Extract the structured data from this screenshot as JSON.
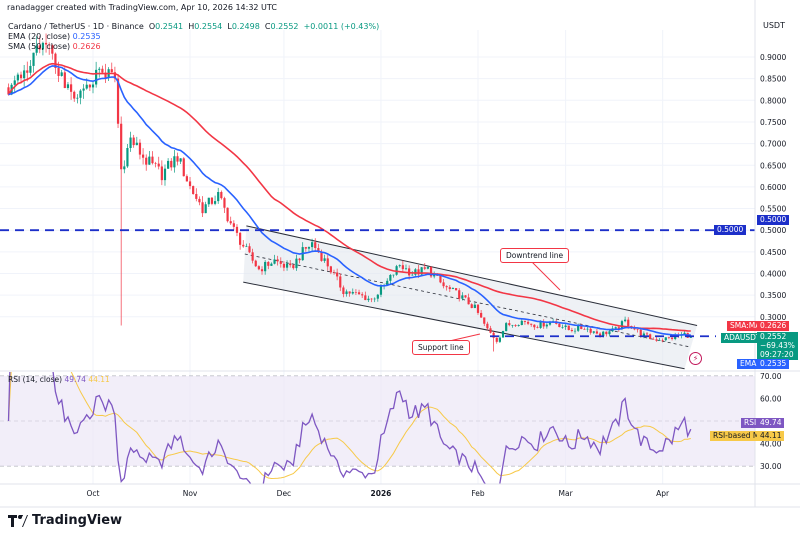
{
  "header": {
    "credit": "ranadagger created with TradingView.com, Apr 10, 2026 14:32 UTC",
    "symbol": "Cardano / TetherUS · 1D · Binance",
    "ohlc": {
      "o_label": "O",
      "o": "0.2541",
      "h_label": "H",
      "h": "0.2554",
      "l_label": "L",
      "l": "0.2498",
      "c_label": "C",
      "c": "0.2552",
      "change": "+0.0011 (+0.43%)"
    },
    "ema_label": "EMA (20, close)",
    "ema_value": "0.2535",
    "sma_label": "SMA (50, close)",
    "sma_value": "0.2626",
    "currency": "USDT"
  },
  "rsi_legend": {
    "label": "RSI (14, close)",
    "rsi": "49.74",
    "ma": "44.11"
  },
  "price_tags": {
    "sma_tag": "SMA:MA",
    "sma": "0.2626",
    "symbol_tag": "ADAUSDT",
    "last": "0.2552",
    "change_pct": "−69.43%",
    "countdown": "09:27:20",
    "ema_tag": "EMA",
    "ema": "0.2535",
    "level": "0.5000",
    "rsi_tag": "RSI",
    "rsi": "49.74",
    "rsi_ma_tag": "RSI-based MA",
    "rsi_ma": "44.11"
  },
  "annotations": {
    "downtrend": "Downtrend line",
    "support": "Support line"
  },
  "logo": "TradingView",
  "colors": {
    "up": "#089981",
    "down": "#f23645",
    "ema": "#2962ff",
    "sma": "#f23645",
    "rsi": "#7e57c2",
    "rsi_ma": "#f7c948",
    "level": "#1c2fc9"
  },
  "chart_data": {
    "type": "candlestick",
    "price_axis": {
      "ticks": [
        "0.9000",
        "0.8500",
        "0.8000",
        "0.7500",
        "0.7000",
        "0.6500",
        "0.6000",
        "0.5500",
        "0.5000",
        "0.4500",
        "0.4000",
        "0.3500",
        "0.3000"
      ],
      "range": [
        0.2,
        0.93
      ]
    },
    "time_axis": {
      "ticks": [
        "Oct",
        "Nov",
        "Dec",
        "2026",
        "Feb",
        "Mar",
        "Apr"
      ]
    },
    "rsi_axis": {
      "ticks": [
        "70.00",
        "60.00",
        "40.00",
        "30.00"
      ],
      "range": [
        20,
        80
      ]
    },
    "close_keypoints": [
      [
        "2025-09-04",
        0.83
      ],
      [
        "2025-09-11",
        0.89
      ],
      [
        "2025-09-16",
        0.93
      ],
      [
        "2025-09-20",
        0.87
      ],
      [
        "2025-09-25",
        0.79
      ],
      [
        "2025-09-28",
        0.82
      ],
      [
        "2025-10-03",
        0.87
      ],
      [
        "2025-10-08",
        0.85
      ],
      [
        "2025-10-10",
        0.64
      ],
      [
        "2025-10-13",
        0.71
      ],
      [
        "2025-10-18",
        0.66
      ],
      [
        "2025-10-23",
        0.63
      ],
      [
        "2025-10-28",
        0.67
      ],
      [
        "2025-11-01",
        0.6
      ],
      [
        "2025-11-05",
        0.55
      ],
      [
        "2025-11-10",
        0.58
      ],
      [
        "2025-11-15",
        0.5
      ],
      [
        "2025-11-20",
        0.44
      ],
      [
        "2025-11-23",
        0.41
      ],
      [
        "2025-11-28",
        0.43
      ],
      [
        "2025-12-03",
        0.41
      ],
      [
        "2025-12-07",
        0.45
      ],
      [
        "2025-12-10",
        0.47
      ],
      [
        "2025-12-15",
        0.42
      ],
      [
        "2025-12-20",
        0.36
      ],
      [
        "2025-12-25",
        0.35
      ],
      [
        "2025-12-29",
        0.34
      ],
      [
        "2026-01-02",
        0.37
      ],
      [
        "2026-01-07",
        0.42
      ],
      [
        "2026-01-11",
        0.4
      ],
      [
        "2026-01-16",
        0.41
      ],
      [
        "2026-01-21",
        0.37
      ],
      [
        "2026-01-26",
        0.35
      ],
      [
        "2026-01-31",
        0.32
      ],
      [
        "2026-02-04",
        0.27
      ],
      [
        "2026-02-07",
        0.246
      ],
      [
        "2026-02-10",
        0.28
      ],
      [
        "2026-02-15",
        0.29
      ],
      [
        "2026-02-20",
        0.28
      ],
      [
        "2026-02-25",
        0.29
      ],
      [
        "2026-03-02",
        0.27
      ],
      [
        "2026-03-07",
        0.275
      ],
      [
        "2026-03-12",
        0.26
      ],
      [
        "2026-03-17",
        0.27
      ],
      [
        "2026-03-20",
        0.29
      ],
      [
        "2026-03-25",
        0.26
      ],
      [
        "2026-03-29",
        0.248
      ],
      [
        "2026-04-03",
        0.25
      ],
      [
        "2026-04-08",
        0.26
      ],
      [
        "2026-04-10",
        0.2552
      ]
    ],
    "wick_extremes": [
      {
        "date": "2025-10-10",
        "low": 0.28
      },
      {
        "date": "2026-02-06",
        "low": 0.22
      }
    ],
    "indicators": [
      "EMA 20",
      "SMA 50",
      "RSI 14",
      "RSI-based MA"
    ],
    "horizontal_levels": [
      0.5,
      0.255
    ],
    "channel": {
      "upper": [
        [
          "2025-11-19",
          0.51
        ],
        [
          "2026-04-12",
          0.28
        ]
      ],
      "lower": [
        [
          "2025-11-18",
          0.38
        ],
        [
          "2026-04-08",
          0.18
        ]
      ]
    }
  }
}
